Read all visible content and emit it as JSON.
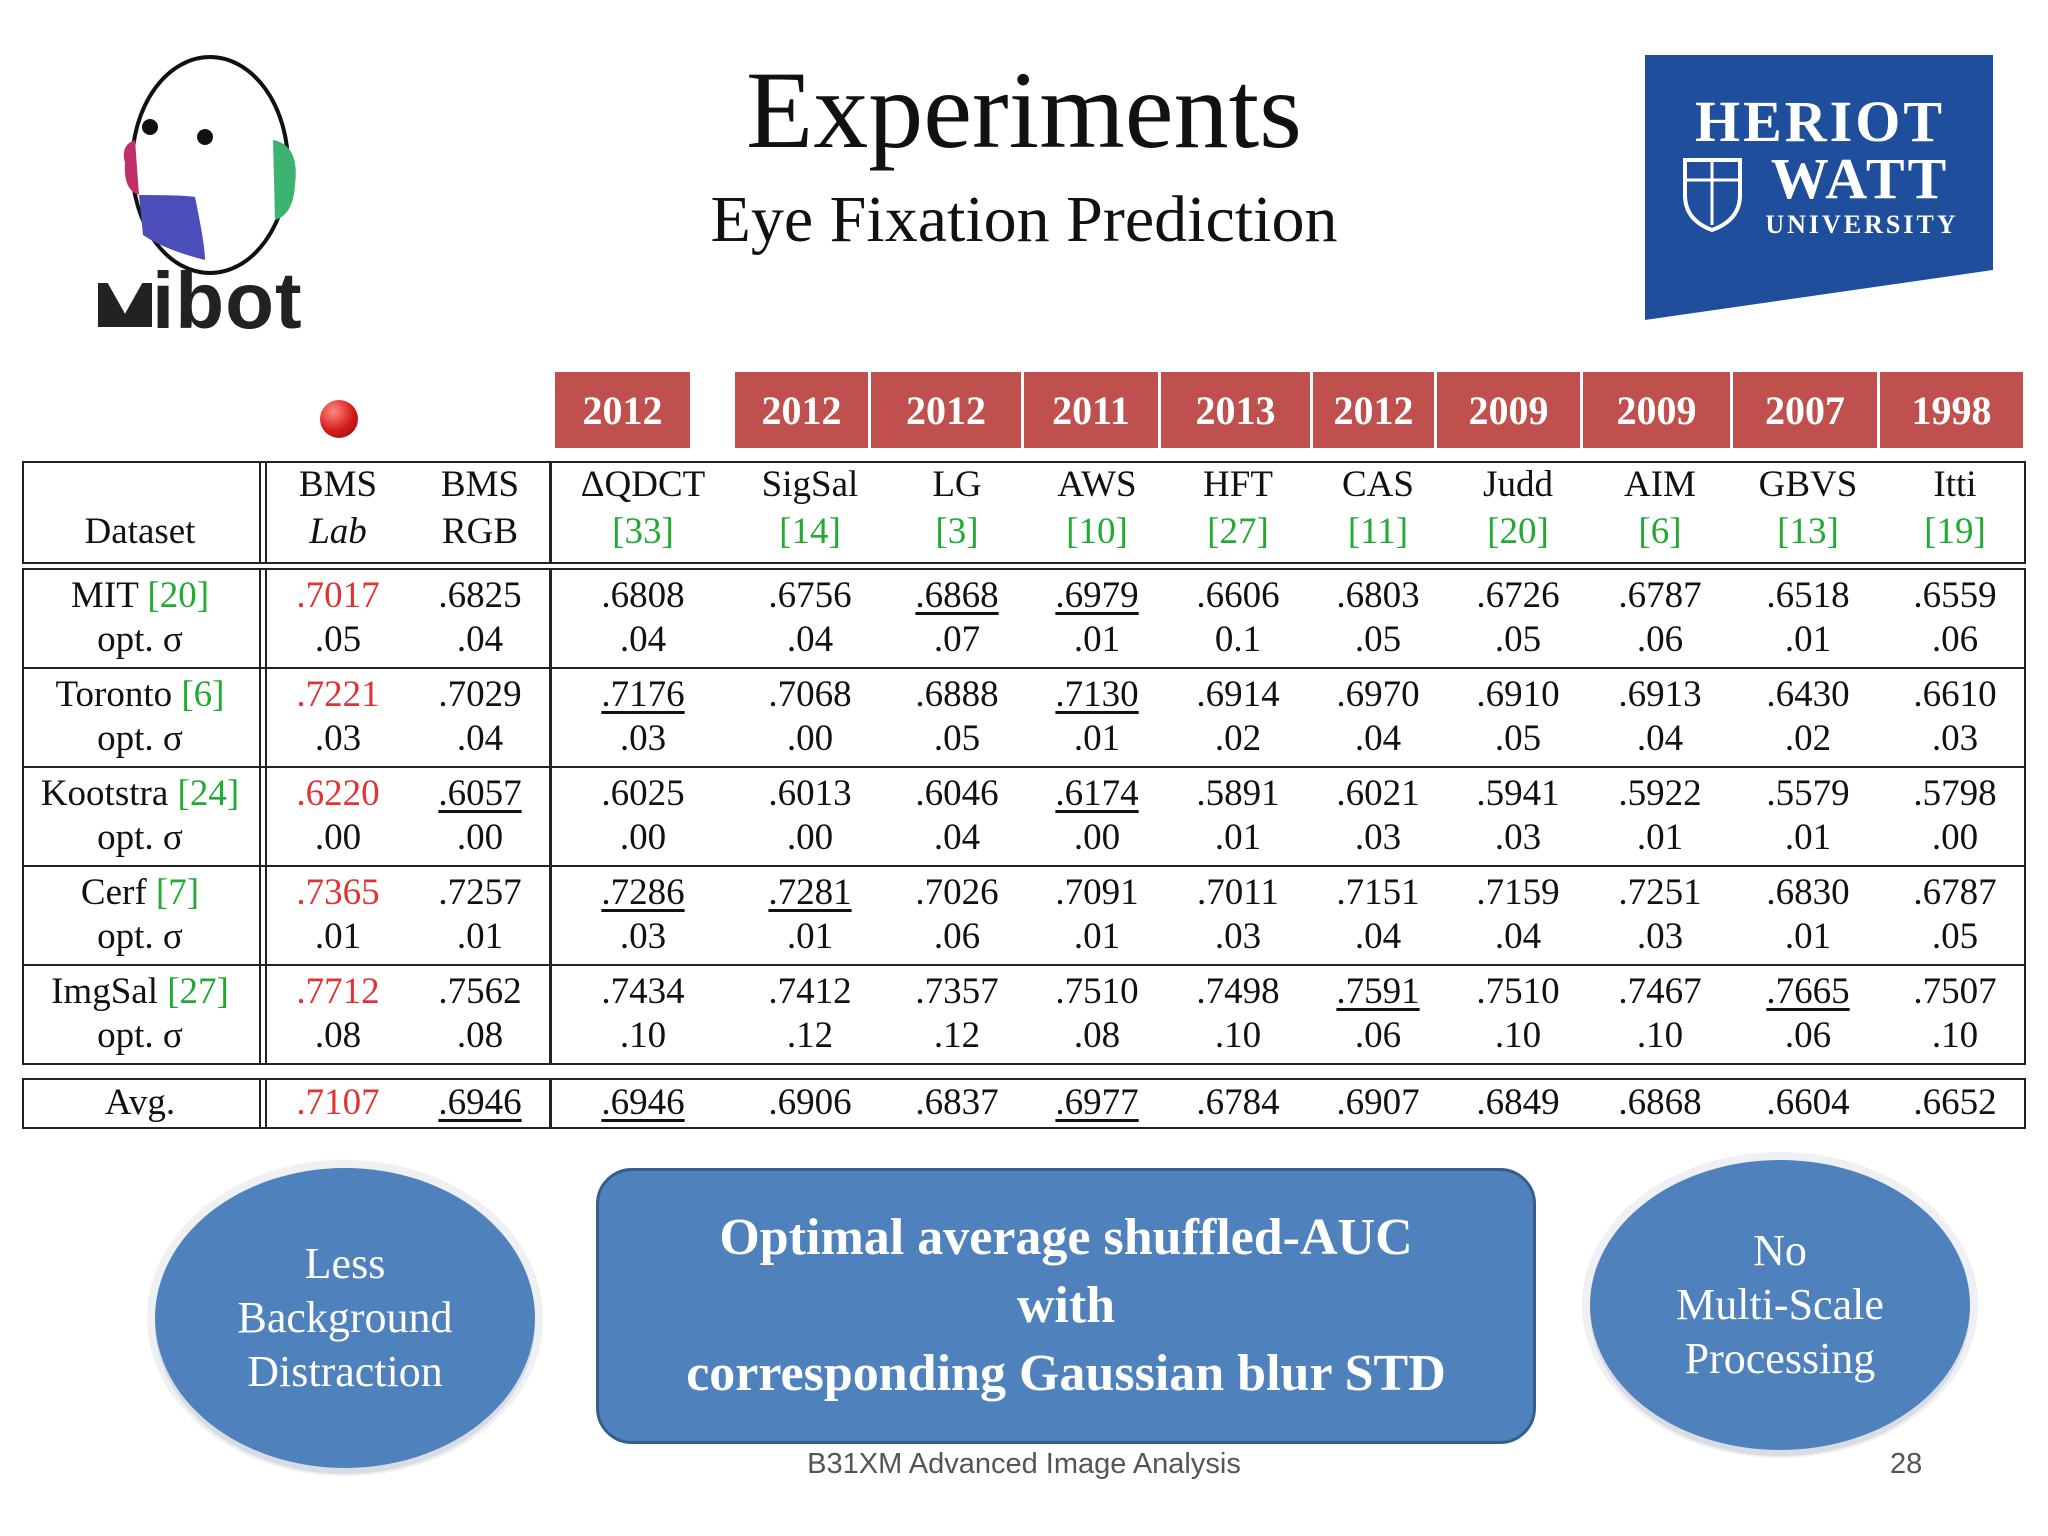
{
  "slide": {
    "title": "Experiments",
    "subtitle": "Eye Fixation Prediction",
    "footer": "B31XM Advanced Image Analysis",
    "page_number": "28"
  },
  "logos": {
    "left_logo_word": "ibot",
    "right_logo_line1": "HERIOT",
    "right_logo_line2": "WATT",
    "right_logo_line3": "UNIVERSITY",
    "right_logo_color": "#1f4e9c"
  },
  "years": [
    "2012",
    "2012",
    "2012",
    "2011",
    "2013",
    "2012",
    "2009",
    "2009",
    "2007",
    "1998"
  ],
  "table": {
    "dataset_header": "Dataset",
    "methods": [
      {
        "name": "BMS",
        "sub": "Lab",
        "sub_italic": true,
        "ref": ""
      },
      {
        "name": "BMS",
        "sub": "RGB",
        "sub_italic": false,
        "ref": ""
      },
      {
        "name": "ΔQDCT",
        "ref": "[33]"
      },
      {
        "name": "SigSal",
        "ref": "[14]"
      },
      {
        "name": "LG",
        "ref": "[3]"
      },
      {
        "name": "AWS",
        "ref": "[10]"
      },
      {
        "name": "HFT",
        "ref": "[27]"
      },
      {
        "name": "CAS",
        "ref": "[11]"
      },
      {
        "name": "Judd",
        "ref": "[20]"
      },
      {
        "name": "AIM",
        "ref": "[6]"
      },
      {
        "name": "GBVS",
        "ref": "[13]"
      },
      {
        "name": "Itti",
        "ref": "[19]"
      }
    ],
    "rows": [
      {
        "dataset": "MIT",
        "ref": "[20]",
        "opt_label": "opt. σ",
        "scores": [
          ".7017",
          ".6825",
          ".6808",
          ".6756",
          ".6868",
          ".6979",
          ".6606",
          ".6803",
          ".6726",
          ".6787",
          ".6518",
          ".6559"
        ],
        "sigma": [
          ".05",
          ".04",
          ".04",
          ".04",
          ".07",
          ".01",
          "0.1",
          ".05",
          ".05",
          ".06",
          ".01",
          ".06"
        ],
        "underline": [
          4,
          5
        ]
      },
      {
        "dataset": "Toronto",
        "ref": "[6]",
        "opt_label": "opt. σ",
        "scores": [
          ".7221",
          ".7029",
          ".7176",
          ".7068",
          ".6888",
          ".7130",
          ".6914",
          ".6970",
          ".6910",
          ".6913",
          ".6430",
          ".6610"
        ],
        "sigma": [
          ".03",
          ".04",
          ".03",
          ".00",
          ".05",
          ".01",
          ".02",
          ".04",
          ".05",
          ".04",
          ".02",
          ".03"
        ],
        "underline": [
          2,
          5
        ]
      },
      {
        "dataset": "Kootstra",
        "ref": "[24]",
        "opt_label": "opt. σ",
        "scores": [
          ".6220",
          ".6057",
          ".6025",
          ".6013",
          ".6046",
          ".6174",
          ".5891",
          ".6021",
          ".5941",
          ".5922",
          ".5579",
          ".5798"
        ],
        "sigma": [
          ".00",
          ".00",
          ".00",
          ".00",
          ".04",
          ".00",
          ".01",
          ".03",
          ".03",
          ".01",
          ".01",
          ".00"
        ],
        "underline": [
          1,
          5
        ]
      },
      {
        "dataset": "Cerf",
        "ref": "[7]",
        "opt_label": "opt. σ",
        "scores": [
          ".7365",
          ".7257",
          ".7286",
          ".7281",
          ".7026",
          ".7091",
          ".7011",
          ".7151",
          ".7159",
          ".7251",
          ".6830",
          ".6787"
        ],
        "sigma": [
          ".01",
          ".01",
          ".03",
          ".01",
          ".06",
          ".01",
          ".03",
          ".04",
          ".04",
          ".03",
          ".01",
          ".05"
        ],
        "underline": [
          2,
          3
        ]
      },
      {
        "dataset": "ImgSal",
        "ref": "[27]",
        "opt_label": "opt. σ",
        "scores": [
          ".7712",
          ".7562",
          ".7434",
          ".7412",
          ".7357",
          ".7510",
          ".7498",
          ".7591",
          ".7510",
          ".7467",
          ".7665",
          ".7507"
        ],
        "sigma": [
          ".08",
          ".08",
          ".10",
          ".12",
          ".12",
          ".08",
          ".10",
          ".06",
          ".10",
          ".10",
          ".06",
          ".10"
        ],
        "underline": [
          7,
          10
        ]
      }
    ],
    "avg": {
      "label": "Avg.",
      "scores": [
        ".7107",
        ".6946",
        ".6946",
        ".6906",
        ".6837",
        ".6977",
        ".6784",
        ".6907",
        ".6849",
        ".6868",
        ".6604",
        ".6652"
      ],
      "underline": [
        1,
        2,
        5
      ]
    },
    "best_color": "#e23333",
    "ref_color": "#22aa33"
  },
  "callouts": {
    "left": [
      "Less",
      "Background",
      "Distraction"
    ],
    "center": [
      "Optimal average shuffled-AUC",
      "with",
      "corresponding Gaussian blur STD"
    ],
    "right": [
      "No",
      "Multi-Scale",
      "Processing"
    ],
    "fill_color": "#4f81bd"
  }
}
